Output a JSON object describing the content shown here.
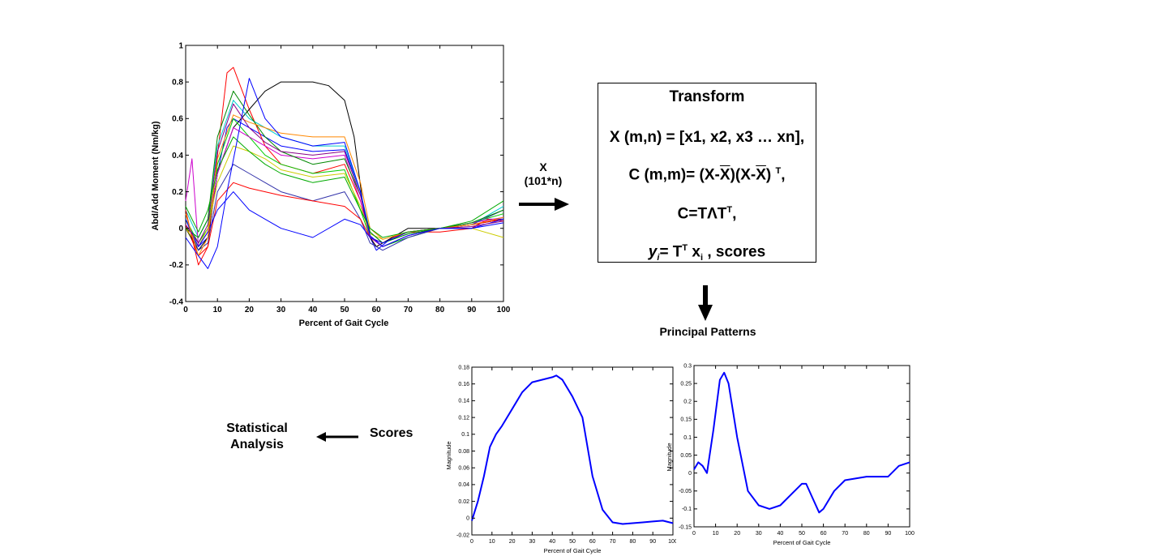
{
  "main_chart": {
    "ylabel": "Abd/Add Moment (Nm/kg)",
    "xlabel": "Percent of Gait Cycle",
    "xticks": [
      "0",
      "10",
      "20",
      "30",
      "40",
      "50",
      "60",
      "70",
      "80",
      "90",
      "100"
    ],
    "yticks": [
      "-0.4",
      "-0.2",
      "0",
      "0.2",
      "0.4",
      "0.6",
      "0.8",
      "1"
    ],
    "xlim": [
      0,
      100
    ],
    "ylim": [
      -0.4,
      1
    ]
  },
  "arrow_label": {
    "line1": "X",
    "line2": "(101*n)"
  },
  "transform_box": {
    "title": "Transform",
    "eq1": "X (m,n) = [x1, x2, x3 … xn],",
    "eq2_a": "C (m,m)= (X-",
    "eq2_b": "X",
    "eq2_c": ")(X-",
    "eq2_d": "X",
    "eq2_e": ")",
    "eq2_f": "T",
    "eq2_g": ",",
    "eq3_a": "C=TΛT",
    "eq3_b": "T",
    "eq3_c": ",",
    "eq4_a": "y",
    "eq4_b": "i",
    "eq4_c": "= T",
    "eq4_d": "T",
    "eq4_e": " x",
    "eq4_f": "i",
    "eq4_g": " , scores"
  },
  "principal_patterns_label": "Principal Patterns",
  "scores_label": "Scores",
  "statistical_analysis": {
    "line1": "Statistical",
    "line2": "Analysis"
  },
  "chart_data": [
    {
      "type": "line",
      "title": "",
      "xlabel": "Percent of Gait Cycle",
      "ylabel": "Abd/Add Moment (Nm/kg)",
      "xlim": [
        0,
        100
      ],
      "ylim": [
        -0.4,
        1
      ],
      "note_series_count": "many overlapping multicolor curves",
      "series": [
        {
          "color": "#0000ff",
          "x": [
            0,
            4,
            7,
            10,
            13,
            15,
            20,
            25,
            30,
            40,
            50,
            55,
            58,
            60,
            65,
            70,
            80,
            90,
            95,
            100
          ],
          "y": [
            0,
            -0.1,
            -0.05,
            0.3,
            0.55,
            0.6,
            0.55,
            0.5,
            0.45,
            0.42,
            0.43,
            0.2,
            -0.05,
            -0.12,
            -0.05,
            -0.02,
            0.0,
            0.0,
            0.05,
            0.05
          ]
        },
        {
          "color": "#ff0000",
          "x": [
            0,
            4,
            7,
            10,
            13,
            15,
            20,
            25,
            30,
            40,
            50,
            55,
            58,
            60,
            65,
            70,
            80,
            90,
            95,
            100
          ],
          "y": [
            0.02,
            -0.15,
            -0.1,
            0.4,
            0.85,
            0.88,
            0.65,
            0.45,
            0.35,
            0.3,
            0.35,
            0.15,
            -0.05,
            -0.1,
            -0.05,
            -0.02,
            -0.02,
            0.0,
            0.05,
            0.04
          ]
        },
        {
          "color": "#000000",
          "x": [
            0,
            4,
            7,
            10,
            15,
            20,
            25,
            30,
            35,
            40,
            45,
            50,
            53,
            56,
            58,
            60,
            65,
            70,
            80,
            90,
            100
          ],
          "y": [
            0.0,
            -0.12,
            -0.05,
            0.3,
            0.55,
            0.65,
            0.75,
            0.8,
            0.8,
            0.8,
            0.78,
            0.7,
            0.5,
            0.1,
            -0.05,
            -0.1,
            -0.05,
            0.0,
            0.0,
            0.02,
            0.05
          ]
        },
        {
          "color": "#00cc00",
          "x": [
            0,
            4,
            7,
            10,
            15,
            20,
            25,
            30,
            40,
            50,
            55,
            58,
            62,
            70,
            80,
            90,
            100
          ],
          "y": [
            0.05,
            -0.08,
            0.0,
            0.35,
            0.6,
            0.5,
            0.4,
            0.35,
            0.3,
            0.32,
            0.1,
            -0.05,
            -0.1,
            -0.05,
            0.0,
            0.03,
            0.08
          ]
        },
        {
          "color": "#00cccc",
          "x": [
            0,
            4,
            7,
            10,
            15,
            20,
            25,
            30,
            40,
            50,
            55,
            58,
            62,
            70,
            80,
            90,
            100
          ],
          "y": [
            0.1,
            -0.05,
            0.05,
            0.45,
            0.7,
            0.6,
            0.55,
            0.5,
            0.45,
            0.45,
            0.2,
            -0.02,
            -0.08,
            -0.03,
            0.0,
            0.02,
            0.12
          ]
        },
        {
          "color": "#cc00cc",
          "x": [
            0,
            2,
            4,
            7,
            10,
            15,
            20,
            25,
            30,
            40,
            50,
            55,
            58,
            62,
            70,
            80,
            90,
            100
          ],
          "y": [
            0.15,
            0.38,
            -0.1,
            -0.02,
            0.3,
            0.55,
            0.5,
            0.45,
            0.4,
            0.38,
            0.4,
            0.15,
            -0.05,
            -0.1,
            -0.04,
            0.0,
            0.03,
            0.06
          ]
        },
        {
          "color": "#cccc00",
          "x": [
            0,
            4,
            7,
            10,
            15,
            20,
            25,
            30,
            40,
            50,
            55,
            58,
            62,
            70,
            80,
            90,
            100
          ],
          "y": [
            0.0,
            -0.1,
            0.0,
            0.25,
            0.45,
            0.42,
            0.38,
            0.32,
            0.28,
            0.3,
            0.12,
            -0.03,
            -0.06,
            -0.02,
            0.0,
            0.0,
            -0.05
          ]
        },
        {
          "color": "#3333aa",
          "x": [
            0,
            4,
            7,
            10,
            15,
            20,
            25,
            30,
            40,
            50,
            55,
            58,
            62,
            70,
            80,
            90,
            100
          ],
          "y": [
            0.05,
            -0.12,
            -0.08,
            0.2,
            0.35,
            0.3,
            0.25,
            0.2,
            0.15,
            0.2,
            0.05,
            -0.08,
            -0.12,
            -0.05,
            0.0,
            0.02,
            0.1
          ]
        },
        {
          "color": "#ff0000",
          "x": [
            0,
            4,
            7,
            10,
            15,
            20,
            25,
            30,
            40,
            50,
            55,
            58,
            62,
            70,
            80,
            90,
            100
          ],
          "y": [
            0.1,
            -0.2,
            -0.1,
            0.15,
            0.25,
            0.22,
            0.2,
            0.18,
            0.15,
            0.12,
            0.05,
            -0.05,
            -0.08,
            -0.02,
            0.0,
            0.02,
            0.05
          ]
        },
        {
          "color": "#008800",
          "x": [
            0,
            4,
            7,
            10,
            15,
            20,
            25,
            30,
            40,
            50,
            55,
            58,
            62,
            70,
            80,
            90,
            100
          ],
          "y": [
            0.0,
            -0.05,
            0.05,
            0.5,
            0.75,
            0.62,
            0.5,
            0.42,
            0.35,
            0.38,
            0.18,
            -0.02,
            -0.08,
            -0.03,
            0.0,
            0.03,
            0.1
          ]
        },
        {
          "color": "#0000ff",
          "x": [
            0,
            4,
            7,
            10,
            15,
            20,
            25,
            30,
            40,
            50,
            55,
            58,
            62,
            70,
            80,
            90,
            100
          ],
          "y": [
            0.05,
            -0.1,
            -0.02,
            0.1,
            0.2,
            0.1,
            0.05,
            0.0,
            -0.05,
            0.05,
            0.02,
            -0.05,
            -0.08,
            -0.02,
            0.0,
            0.0,
            0.05
          ]
        },
        {
          "color": "#ff8800",
          "x": [
            0,
            4,
            7,
            10,
            15,
            20,
            25,
            30,
            40,
            50,
            55,
            58,
            62,
            70,
            80,
            90,
            100
          ],
          "y": [
            0.08,
            -0.15,
            -0.05,
            0.38,
            0.62,
            0.58,
            0.55,
            0.52,
            0.5,
            0.5,
            0.25,
            0.0,
            -0.06,
            -0.02,
            0.0,
            0.02,
            0.06
          ]
        },
        {
          "color": "#880088",
          "x": [
            0,
            4,
            7,
            10,
            15,
            20,
            25,
            30,
            40,
            50,
            55,
            58,
            62,
            70,
            80,
            90,
            100
          ],
          "y": [
            0.02,
            -0.08,
            0.02,
            0.42,
            0.68,
            0.55,
            0.47,
            0.42,
            0.4,
            0.42,
            0.18,
            -0.04,
            -0.1,
            -0.04,
            0.0,
            0.01,
            0.04
          ]
        },
        {
          "color": "#00aa00",
          "x": [
            0,
            4,
            7,
            10,
            15,
            20,
            25,
            30,
            40,
            50,
            55,
            58,
            62,
            70,
            80,
            90,
            100
          ],
          "y": [
            0.12,
            -0.02,
            0.1,
            0.32,
            0.5,
            0.42,
            0.35,
            0.3,
            0.25,
            0.28,
            0.1,
            0.0,
            -0.05,
            -0.02,
            0.0,
            0.04,
            0.15
          ]
        },
        {
          "color": "#0000ff",
          "x": [
            0,
            4,
            7,
            10,
            13,
            17,
            20,
            25,
            30,
            40,
            50,
            55,
            58,
            62,
            70,
            80,
            90,
            100
          ],
          "y": [
            -0.05,
            -0.15,
            -0.22,
            -0.1,
            0.2,
            0.55,
            0.82,
            0.6,
            0.5,
            0.45,
            0.47,
            0.2,
            -0.04,
            -0.1,
            -0.04,
            0.0,
            0.0,
            0.03
          ]
        }
      ]
    },
    {
      "type": "line",
      "title": "",
      "xlabel": "Percent of Gait Cycle",
      "ylabel": "Magnitude",
      "xlim": [
        0,
        100
      ],
      "ylim": [
        -0.02,
        0.18
      ],
      "xticks": [
        "0",
        "10",
        "20",
        "30",
        "40",
        "50",
        "60",
        "70",
        "80",
        "90",
        "100"
      ],
      "yticks": [
        "-0.02",
        "0",
        "0.02",
        "0.04",
        "0.06",
        "0.08",
        "0.1",
        "0.12",
        "0.14",
        "0.16",
        "0.18"
      ],
      "series": [
        {
          "color": "#0000ff",
          "x": [
            0,
            3,
            6,
            9,
            12,
            15,
            20,
            25,
            30,
            35,
            40,
            42,
            45,
            50,
            55,
            60,
            65,
            70,
            75,
            80,
            85,
            90,
            95,
            100
          ],
          "y": [
            -0.003,
            0.02,
            0.05,
            0.085,
            0.1,
            0.11,
            0.13,
            0.15,
            0.162,
            0.165,
            0.168,
            0.17,
            0.165,
            0.145,
            0.12,
            0.05,
            0.01,
            -0.005,
            -0.007,
            -0.006,
            -0.005,
            -0.004,
            -0.003,
            -0.006
          ]
        }
      ]
    },
    {
      "type": "line",
      "title": "",
      "xlabel": "Percent of Gait Cycle",
      "ylabel": "Magnitude",
      "xlim": [
        0,
        100
      ],
      "ylim": [
        -0.15,
        0.3
      ],
      "xticks": [
        "0",
        "10",
        "20",
        "30",
        "40",
        "50",
        "60",
        "70",
        "80",
        "90",
        "100"
      ],
      "yticks": [
        "-0.15",
        "-0.1",
        "-0.05",
        "0",
        "0.05",
        "0.1",
        "0.15",
        "0.2",
        "0.25",
        "0.3"
      ],
      "series": [
        {
          "color": "#0000ff",
          "x": [
            0,
            2,
            4,
            6,
            9,
            12,
            14,
            16,
            20,
            25,
            30,
            35,
            40,
            45,
            50,
            52,
            55,
            58,
            60,
            65,
            70,
            80,
            90,
            95,
            100
          ],
          "y": [
            0.01,
            0.03,
            0.02,
            0.0,
            0.12,
            0.26,
            0.28,
            0.25,
            0.1,
            -0.05,
            -0.09,
            -0.1,
            -0.09,
            -0.06,
            -0.03,
            -0.03,
            -0.07,
            -0.11,
            -0.1,
            -0.05,
            -0.02,
            -0.01,
            -0.01,
            0.02,
            0.03
          ]
        }
      ]
    }
  ]
}
